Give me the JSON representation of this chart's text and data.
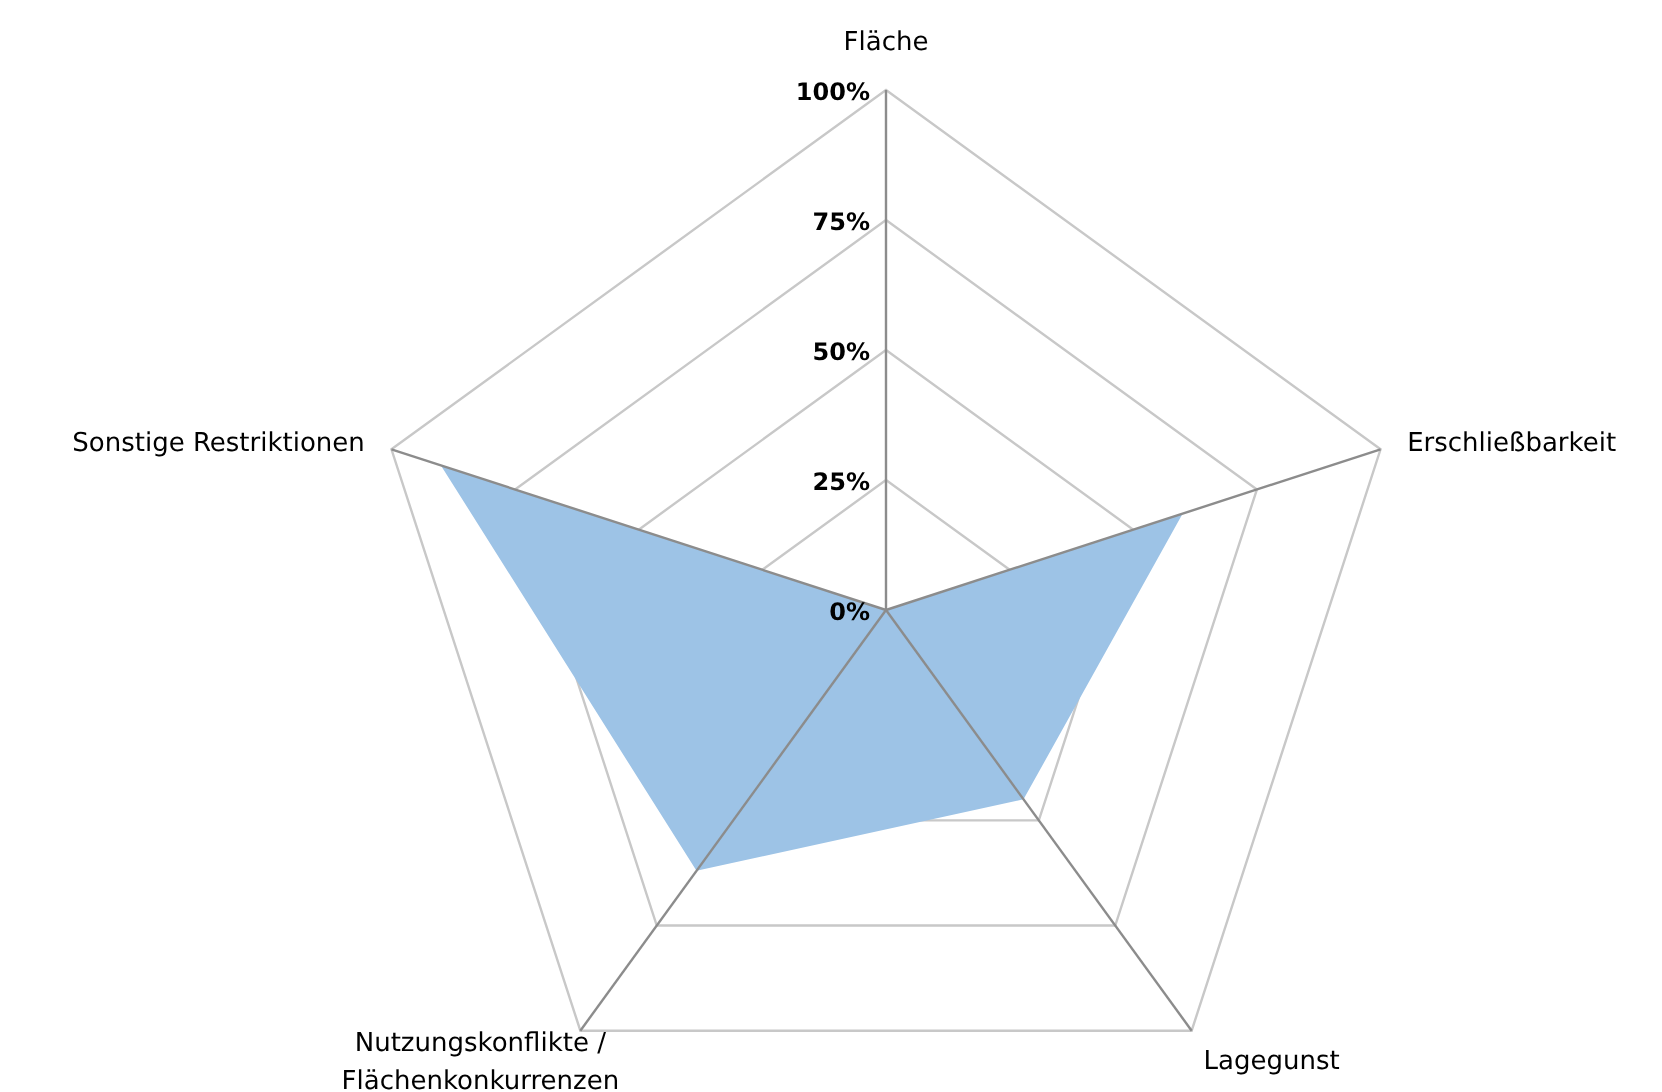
{
  "chart_data": {
    "type": "radar",
    "categories": [
      "Fläche",
      "Erschließbarkeit",
      "Lagegunst",
      "Nutzungskonflikte /\nFlächenkonkurrenzen",
      "Sonstige Restriktionen"
    ],
    "series": [
      {
        "color": "#9dc3e6",
        "values": [
          0,
          60,
          45,
          62,
          90
        ]
      }
    ],
    "ylim": [
      0,
      100
    ],
    "yticks": [
      {
        "value": 0,
        "label": "0%"
      },
      {
        "value": 25,
        "label": "25%"
      },
      {
        "value": 50,
        "label": "50%"
      },
      {
        "value": 75,
        "label": "75%"
      },
      {
        "value": 100,
        "label": "100%"
      }
    ],
    "grid": true
  }
}
